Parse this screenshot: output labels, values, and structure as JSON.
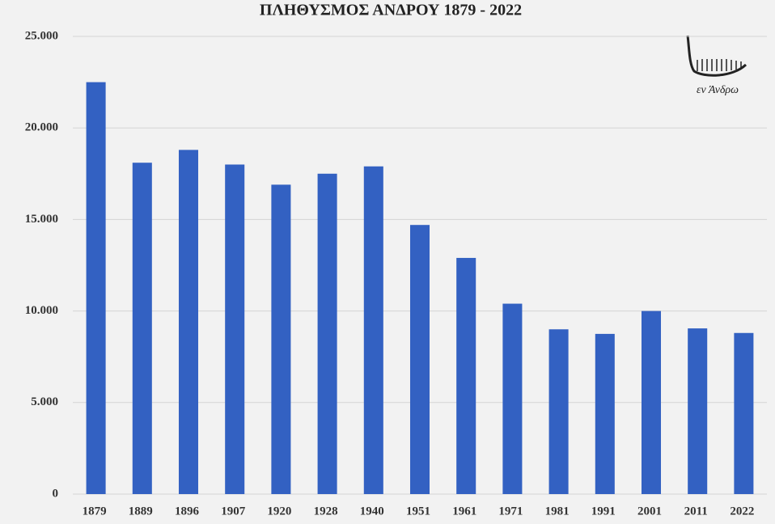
{
  "chart_data": {
    "type": "bar",
    "title": "ΠΛΗΘΥΣΜΟΣ ΑΝΔΡΟΥ 1879 - 2022",
    "categories": [
      "1879",
      "1889",
      "1896",
      "1907",
      "1920",
      "1928",
      "1940",
      "1951",
      "1961",
      "1971",
      "1981",
      "1991",
      "2001",
      "2011",
      "2022"
    ],
    "values": [
      22500,
      18100,
      18800,
      18000,
      16900,
      17500,
      17900,
      14700,
      12900,
      10400,
      9000,
      8750,
      10000,
      9050,
      8800
    ],
    "color": "#3361c2",
    "ylim": [
      0,
      25000
    ],
    "yticks": [
      0,
      {
        "value": 5000,
        "label": "5.000"
      },
      {
        "value": 10000,
        "label": "10.000"
      },
      {
        "value": 15000,
        "label": "15.000"
      },
      {
        "value": 20000,
        "label": "20.000"
      },
      {
        "value": 25000,
        "label": "25.000"
      }
    ],
    "grid": true,
    "logo_text": "εν Άνδρω"
  }
}
